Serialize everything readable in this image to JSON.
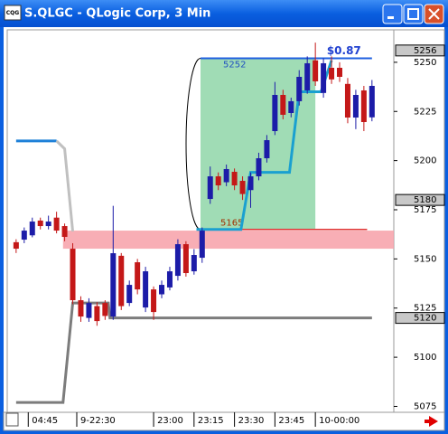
{
  "window": {
    "icon": "CQG"
  },
  "chart_data": {
    "type": "candlestick",
    "title": "S.QLGC - QLogic Corp, 3 Min",
    "up_color": "#1c1ca8",
    "down_color": "#c41818",
    "xlim": [
      -1.1,
      46.7
    ],
    "ylim": [
      5072,
      5266.5
    ],
    "yticks": [
      5075,
      5100,
      5125,
      5150,
      5175,
      5200,
      5225,
      5250
    ],
    "xticks": [
      {
        "value": 1.5,
        "label": "04:45"
      },
      {
        "value": 7.5,
        "label": "9-22:30"
      },
      {
        "value": 17,
        "label": "23:00"
      },
      {
        "value": 22,
        "label": "23:15"
      },
      {
        "value": 27,
        "label": "23:30"
      },
      {
        "value": 32,
        "label": "23:45"
      },
      {
        "value": 37,
        "label": "10-00:00"
      }
    ],
    "open": [
      5158.5,
      5159.8,
      5162,
      5169.5,
      5166.7,
      5171,
      5166.7,
      5155.2,
      5129,
      5120,
      5126,
      5127.6,
      5120.7,
      5151.6,
      5127.6,
      5148.3,
      5125.3,
      5134.5,
      5132,
      5135.5,
      5141.4,
      5157.5,
      5143.7,
      5150.6,
      5180.5,
      5192,
      5189,
      5194.3,
      5189.7,
      5185,
      5192,
      5201.2,
      5215,
      5233.4,
      5224.2,
      5230.2,
      5235.7,
      5251,
      5234.4,
      5247.2,
      5247.2,
      5239,
      5221.9,
      5235.7,
      5222
    ],
    "high": [
      5160,
      5166,
      5171,
      5171,
      5172,
      5174,
      5168,
      5158,
      5131,
      5130,
      5128,
      5129,
      5177,
      5153,
      5139,
      5150,
      5146,
      5136,
      5139,
      5146,
      5160,
      5159,
      5155,
      5166,
      5197,
      5194,
      5198,
      5196,
      5192,
      5194,
      5204,
      5213,
      5240,
      5236,
      5232,
      5246,
      5253,
      5260,
      5252,
      5253,
      5250,
      5242,
      5236,
      5238,
      5241
    ],
    "low": [
      5153,
      5158,
      5161,
      5165,
      5165,
      5163,
      5159,
      5127,
      5118,
      5118,
      5116,
      5119,
      5119,
      5124,
      5126,
      5132,
      5123,
      5119,
      5130,
      5134,
      5139,
      5141,
      5142,
      5148,
      5178,
      5185,
      5187,
      5185,
      5180,
      5176,
      5190,
      5199,
      5213,
      5221,
      5222,
      5228,
      5234,
      5238,
      5232,
      5239,
      5240,
      5219,
      5216,
      5215,
      5220
    ],
    "close": [
      5155.2,
      5164.4,
      5169,
      5166.7,
      5169,
      5164.4,
      5161.2,
      5129,
      5120.7,
      5127.6,
      5118.4,
      5121,
      5152.9,
      5126,
      5136.8,
      5134.5,
      5143.7,
      5123,
      5136.8,
      5143.7,
      5157.5,
      5142.8,
      5152,
      5164.4,
      5192,
      5187.4,
      5195.7,
      5187.4,
      5183,
      5192,
      5201.2,
      5210.4,
      5233.4,
      5223.3,
      5230.2,
      5242.6,
      5249.5,
      5240.3,
      5249.5,
      5241.3,
      5242.6,
      5221.9,
      5233.4,
      5219.6,
      5238
    ],
    "lines": [
      {
        "color": "#1e80d8",
        "x": [
          0,
          5
        ],
        "values": [
          5210,
          5210
        ]
      },
      {
        "color": "#c0c0c0",
        "x": [
          5,
          6,
          7
        ],
        "values": [
          5210,
          5206,
          5164
        ]
      },
      {
        "color": "#7c7c7c",
        "x": [
          0,
          5.8,
          7,
          11.4,
          11.6,
          44
        ],
        "values": [
          5077,
          5077,
          5127.6,
          5127.6,
          5120,
          5120
        ]
      },
      {
        "color": "#1aa0d0",
        "x": [
          22.3,
          27.8,
          29,
          33.8,
          35,
          37.7,
          39
        ],
        "values": [
          5165,
          5165,
          5194,
          5194,
          5235,
          5235,
          5251
        ]
      }
    ],
    "band": {
      "color": "#f7a0a8",
      "x": [
        5.8,
        46.7
      ],
      "values": [
        5155.2,
        5164.4
      ]
    },
    "target": {
      "x": [
        22.8,
        37
      ],
      "top": 5252,
      "bottom": 5165,
      "top_end": 44,
      "bottom_end": 43.4,
      "gain_label": "$0.87"
    },
    "price_marks": [
      5256,
      5180,
      5120
    ]
  }
}
